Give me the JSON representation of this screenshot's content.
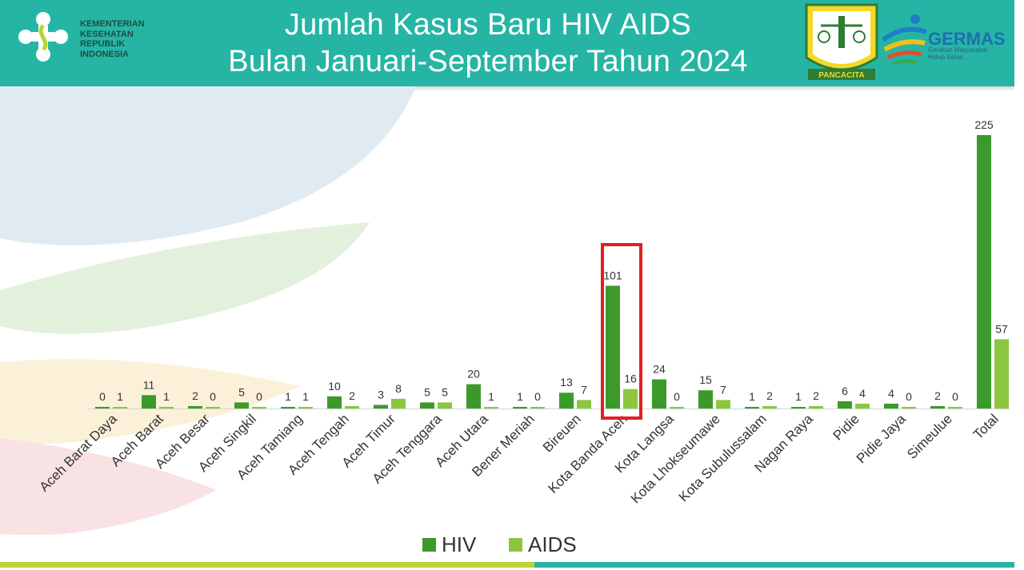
{
  "header": {
    "title_line1": "Jumlah Kasus Baru HIV AIDS",
    "title_line2": "Bulan Januari-September Tahun 2024",
    "ministry": [
      "KEMENTERIAN",
      "KESEHATAN",
      "REPUBLIK",
      "INDONESIA"
    ],
    "emblem_label": "PANCACITA",
    "germas_name": "GERMAS",
    "germas_tagline": [
      "Gerakan Masyarakat",
      "Hidup Sehat"
    ],
    "header_color": "#26b5a4"
  },
  "chart_data": {
    "type": "bar",
    "categories": [
      "Aceh Barat Daya",
      "Aceh Barat",
      "Aceh Besar",
      "Aceh Singkil",
      "Aceh Tamiang",
      "Aceh Tengah",
      "Aceh Timur",
      "Aceh Tenggara",
      "Aceh Utara",
      "Bener Meriah",
      "Bireuen",
      "Kota Banda Aceh",
      "Kota Langsa",
      "Kota Lhokseumawe",
      "Kota Subulussalam",
      "Nagan Raya",
      "Pidie",
      "Pidie Jaya",
      "Simeulue",
      "Total"
    ],
    "series": [
      {
        "name": "HIV",
        "color": "#3c9a2a",
        "values": [
          0,
          11,
          2,
          5,
          1,
          10,
          3,
          5,
          20,
          1,
          13,
          101,
          24,
          15,
          1,
          1,
          6,
          4,
          2,
          225
        ]
      },
      {
        "name": "AIDS",
        "color": "#8cc63f",
        "values": [
          1,
          1,
          0,
          0,
          1,
          2,
          8,
          5,
          1,
          0,
          7,
          16,
          0,
          7,
          2,
          2,
          4,
          0,
          0,
          57
        ]
      }
    ],
    "ylim": [
      0,
      225
    ],
    "legend": "bottom-center",
    "highlight_category": "Kota Banda Aceh",
    "highlight_color": "#e02020",
    "grid": false,
    "data_labels": true
  }
}
